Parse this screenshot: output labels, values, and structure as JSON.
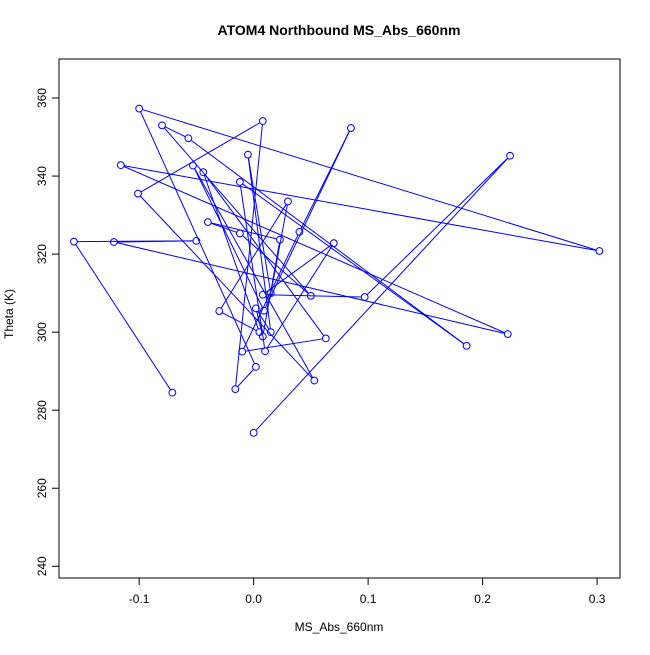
{
  "chart_data": {
    "type": "line",
    "title": "ATOM4 Northbound MS_Abs_660nm",
    "xlabel": "MS_Abs_660nm",
    "ylabel": "Theta (K)",
    "xlim": [
      -0.17,
      0.32
    ],
    "ylim": [
      237,
      370
    ],
    "xticks": [
      -0.1,
      0.0,
      0.1,
      0.2,
      0.3
    ],
    "xtick_labels": [
      "-0.1",
      "0.0",
      "0.1",
      "0.2",
      "0.3"
    ],
    "yticks": [
      240,
      260,
      280,
      300,
      320,
      340,
      360
    ],
    "ytick_labels": [
      "240",
      "260",
      "280",
      "300",
      "320",
      "340",
      "360"
    ],
    "grid": false,
    "line_color": "#0000ff",
    "marker": "open-circle",
    "series": [
      {
        "x": [
          -0.071,
          -0.157,
          -0.05,
          -0.122,
          0.222,
          -0.116,
          0.302,
          -0.1,
          0.002,
          -0.016,
          0.008,
          -0.101,
          0.053,
          -0.053,
          0.009,
          0.085,
          0.04,
          -0.01,
          0.063,
          -0.044,
          0.005,
          -0.03,
          0.03,
          0.015,
          -0.005,
          0.015,
          0.002,
          0.008,
          0.023,
          -0.04,
          -0.012,
          0.05,
          -0.08,
          -0.057,
          0.186,
          -0.012,
          0.01,
          0.07,
          0.008,
          0.097,
          0.224,
          0.0
        ],
        "y": [
          284.5,
          323.2,
          323.4,
          323.1,
          299.5,
          342.8,
          320.8,
          357.3,
          291.1,
          285.4,
          354.1,
          335.5,
          287.6,
          342.7,
          305.5,
          352.3,
          325.7,
          295.0,
          298.4,
          341.0,
          300.0,
          305.4,
          333.5,
          310.0,
          345.5,
          300.0,
          306.1,
          298.9,
          323.7,
          328.2,
          325.3,
          309.3,
          353.0,
          349.7,
          296.5,
          338.5,
          295.1,
          322.8,
          309.6,
          309.0,
          345.2,
          274.2
        ]
      }
    ]
  }
}
